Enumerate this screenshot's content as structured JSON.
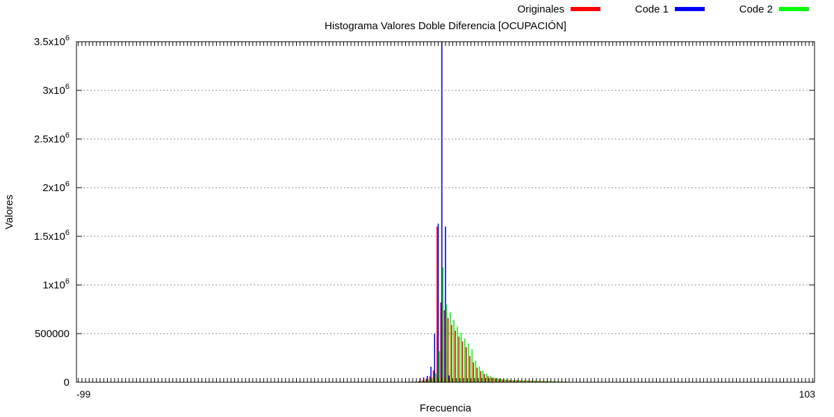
{
  "colors": {
    "originales": "#ff0000",
    "code1": "#0000ff",
    "code2": "#00ff00",
    "grid": "#888888"
  },
  "chart_data": {
    "type": "bar",
    "title": "Histograma Valores Doble Diferencia [OCUPACIÓN]",
    "xlabel": "Frecuencia",
    "ylabel": "Valores",
    "ylim": [
      0,
      3500000
    ],
    "grid": true,
    "legend_position": "top-right",
    "y_ticks": [
      {
        "value": 0,
        "base": "0",
        "exp": ""
      },
      {
        "value": 500000,
        "base": "500000",
        "exp": ""
      },
      {
        "value": 1000000,
        "base": "1x10",
        "exp": "6"
      },
      {
        "value": 1500000,
        "base": "1.5x10",
        "exp": "6"
      },
      {
        "value": 2000000,
        "base": "2x10",
        "exp": "6"
      },
      {
        "value": 2500000,
        "base": "2.5x10",
        "exp": "6"
      },
      {
        "value": 3000000,
        "base": "3x10",
        "exp": "6"
      },
      {
        "value": 3500000,
        "base": "3.5x10",
        "exp": "6"
      }
    ],
    "x_range": [
      -99,
      103
    ],
    "x_first_label": "-99",
    "x_last_label": "103",
    "series": [
      {
        "name": "Originales",
        "color_key": "originales",
        "points": [
          [
            -8,
            4000
          ],
          [
            -7,
            6000
          ],
          [
            -6,
            8000
          ],
          [
            -5,
            12000
          ],
          [
            -4,
            20000
          ],
          [
            -3,
            35000
          ],
          [
            -2,
            60000
          ],
          [
            -1,
            120000
          ],
          [
            0,
            1600000
          ],
          [
            1,
            820000
          ],
          [
            2,
            740000
          ],
          [
            3,
            660000
          ],
          [
            4,
            590000
          ],
          [
            5,
            530000
          ],
          [
            6,
            470000
          ],
          [
            7,
            420000
          ],
          [
            8,
            360000
          ],
          [
            9,
            270000
          ],
          [
            10,
            205000
          ],
          [
            11,
            150000
          ],
          [
            12,
            115000
          ],
          [
            13,
            85000
          ],
          [
            14,
            62000
          ],
          [
            15,
            50000
          ],
          [
            16,
            40000
          ],
          [
            17,
            33000
          ],
          [
            18,
            28000
          ],
          [
            19,
            25000
          ],
          [
            20,
            22000
          ],
          [
            21,
            20000
          ],
          [
            22,
            19000
          ],
          [
            23,
            18000
          ],
          [
            24,
            17000
          ],
          [
            25,
            16000
          ],
          [
            26,
            15000
          ],
          [
            27,
            14000
          ],
          [
            28,
            13000
          ],
          [
            29,
            12000
          ],
          [
            30,
            11000
          ],
          [
            31,
            10000
          ],
          [
            32,
            9000
          ],
          [
            33,
            8000
          ],
          [
            34,
            7000
          ],
          [
            35,
            6000
          ]
        ]
      },
      {
        "name": "Code 1",
        "color_key": "code1",
        "points": [
          [
            -5,
            40000
          ],
          [
            -4,
            50000
          ],
          [
            -3,
            65000
          ],
          [
            -2,
            160000
          ],
          [
            -1,
            500000
          ],
          [
            0,
            1630000
          ],
          [
            1,
            3500000
          ],
          [
            2,
            1600000
          ],
          [
            3,
            70000
          ]
        ]
      },
      {
        "name": "Code 2",
        "color_key": "code2",
        "points": [
          [
            -8,
            3000
          ],
          [
            -7,
            5000
          ],
          [
            -6,
            7000
          ],
          [
            -5,
            10000
          ],
          [
            -4,
            16000
          ],
          [
            -3,
            28000
          ],
          [
            -2,
            45000
          ],
          [
            -1,
            90000
          ],
          [
            0,
            320000
          ],
          [
            1,
            1180000
          ],
          [
            2,
            800000
          ],
          [
            3,
            720000
          ],
          [
            4,
            640000
          ],
          [
            5,
            570000
          ],
          [
            6,
            510000
          ],
          [
            7,
            450000
          ],
          [
            8,
            400000
          ],
          [
            9,
            340000
          ],
          [
            10,
            220000
          ],
          [
            11,
            160000
          ],
          [
            12,
            120000
          ],
          [
            13,
            90000
          ],
          [
            14,
            65000
          ],
          [
            15,
            52000
          ],
          [
            16,
            42000
          ],
          [
            17,
            35000
          ],
          [
            18,
            30000
          ],
          [
            19,
            27000
          ],
          [
            20,
            24000
          ],
          [
            21,
            22000
          ],
          [
            22,
            21000
          ],
          [
            23,
            20000
          ],
          [
            24,
            19000
          ],
          [
            25,
            18000
          ],
          [
            26,
            17000
          ],
          [
            27,
            16000
          ],
          [
            28,
            15000
          ],
          [
            29,
            14000
          ],
          [
            30,
            13000
          ],
          [
            31,
            12000
          ],
          [
            32,
            11000
          ],
          [
            33,
            10000
          ],
          [
            34,
            9000
          ],
          [
            35,
            8000
          ]
        ]
      }
    ]
  }
}
